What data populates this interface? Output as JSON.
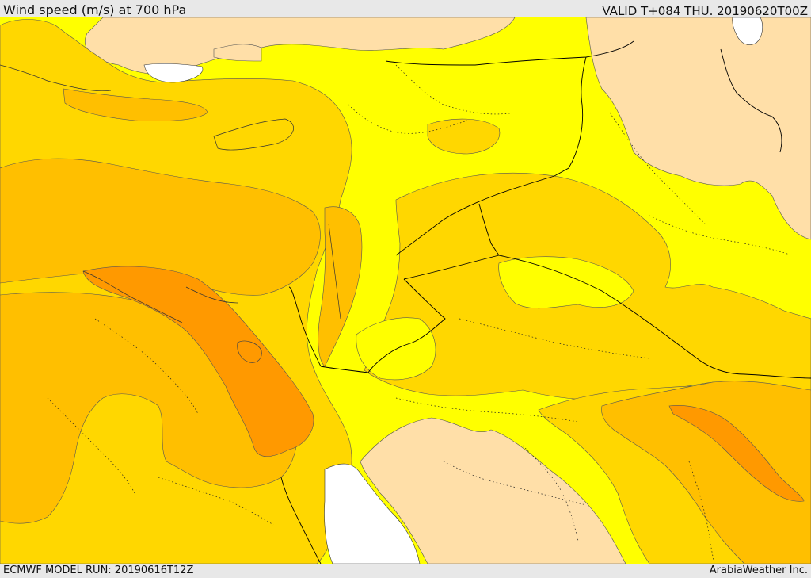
{
  "header": {
    "title": "Wind speed (m/s) at 700 hPa",
    "valid": "VALID T+084 THU. 20190620T00Z"
  },
  "footer": {
    "model_run": "ECMWF MODEL RUN: 20190616T12Z",
    "credit": "ArabiaWeather Inc."
  },
  "colors": {
    "water": "#ffffff",
    "calm": "#ffdfa8",
    "low": "#ffff00",
    "mid": "#ffd700",
    "high": "#ffbf00",
    "very_high": "#ff9900",
    "borders": "#000000"
  }
}
